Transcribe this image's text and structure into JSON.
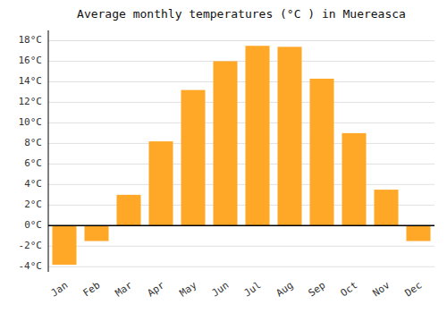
{
  "chart_data": {
    "type": "bar",
    "title": "Average monthly temperatures (°C ) in Muereasca",
    "categories": [
      "Jan",
      "Feb",
      "Mar",
      "Apr",
      "May",
      "Jun",
      "Jul",
      "Aug",
      "Sep",
      "Oct",
      "Nov",
      "Dec"
    ],
    "values": [
      -3.8,
      -1.5,
      3.0,
      8.2,
      13.2,
      16.0,
      17.5,
      17.4,
      14.3,
      9.0,
      3.5,
      -1.5
    ],
    "color": "#FFA726",
    "ylim": [
      -4.5,
      19.0
    ],
    "yticks": [
      {
        "value": -4,
        "label": "-4°C"
      },
      {
        "value": -2,
        "label": "-2°C"
      },
      {
        "value": 0,
        "label": "0°C"
      },
      {
        "value": 2,
        "label": "2°C"
      },
      {
        "value": 4,
        "label": "4°C"
      },
      {
        "value": 6,
        "label": "6°C"
      },
      {
        "value": 8,
        "label": "8°C"
      },
      {
        "value": 10,
        "label": "10°C"
      },
      {
        "value": 12,
        "label": "12°C"
      },
      {
        "value": 14,
        "label": "14°C"
      },
      {
        "value": 16,
        "label": "16°C"
      },
      {
        "value": 18,
        "label": "18°C"
      }
    ],
    "grid": true
  }
}
